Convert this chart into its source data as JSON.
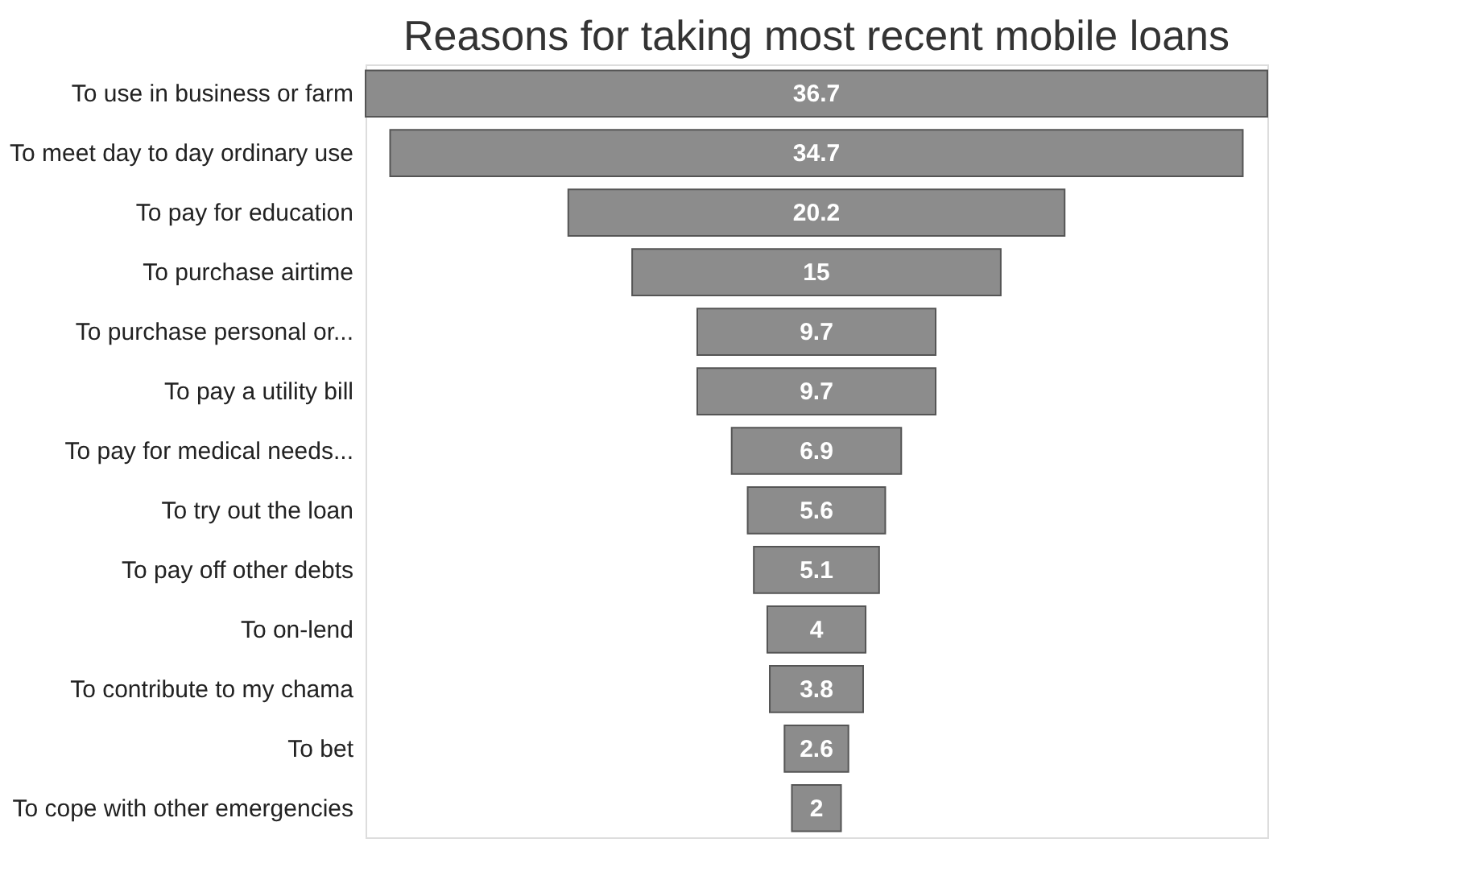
{
  "chart_data": {
    "type": "other",
    "title": "Reasons for taking most recent mobile loans",
    "categories": [
      "To use in business or farm",
      "To meet day to day ordinary use",
      "To pay for education",
      "To purchase airtime",
      "To purchase personal or...",
      "To pay a utility bill",
      "To pay for medical needs...",
      "To try out the loan",
      "To pay off other debts",
      "To on-lend",
      "To contribute to my chama",
      "To bet",
      "To cope with other emergencies"
    ],
    "values": [
      36.7,
      34.7,
      20.2,
      15,
      9.7,
      9.7,
      6.9,
      5.6,
      5.1,
      4,
      3.8,
      2.6,
      2
    ],
    "color": "#8c8c8c",
    "data_labels": true
  }
}
